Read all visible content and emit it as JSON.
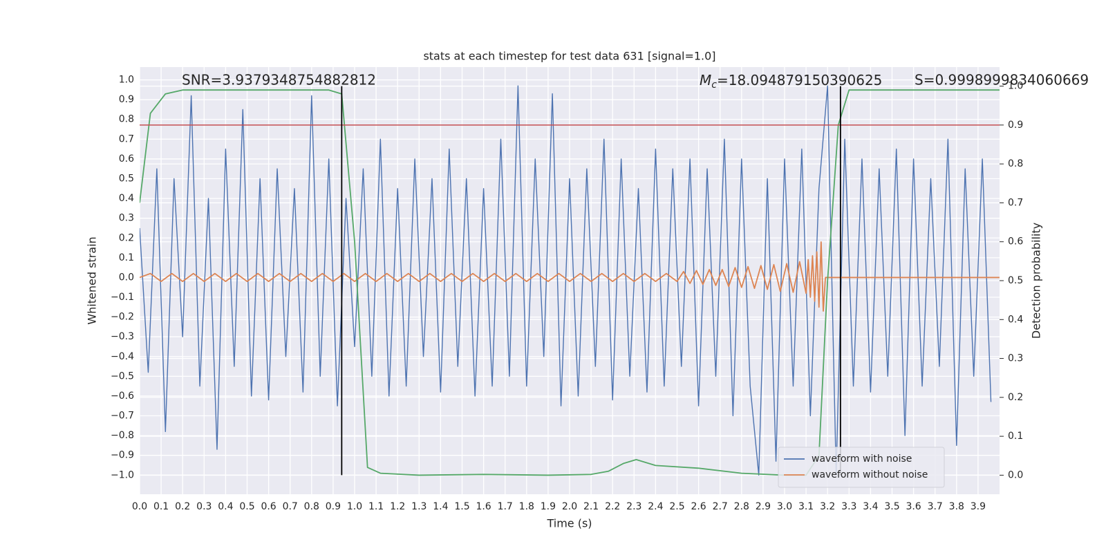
{
  "chart_data": {
    "type": "line",
    "title": "stats at each timestep for test data 631 [signal=1.0]",
    "xlabel": "Time (s)",
    "ylabel": "Whitened strain",
    "y2label": "Detection probability",
    "annotations": [
      {
        "text": "SNR=3.9379348754882812"
      },
      {
        "symbol": "M",
        "subscript": "c",
        "text": "=18.094879150390625"
      },
      {
        "text": "S=0.9998999834060669"
      }
    ],
    "xlim": [
      0,
      4.0
    ],
    "ylim": [
      -1.097,
      1.065
    ],
    "y2lim": [
      -0.049,
      1.049
    ],
    "grid": true,
    "legend_loc": "lower right",
    "xticks": [
      {
        "value": 0,
        "label": "0.0"
      },
      {
        "value": 0.1,
        "label": "0.1"
      },
      {
        "value": 0.2,
        "label": "0.2"
      },
      {
        "value": 0.3,
        "label": "0.3"
      },
      {
        "value": 0.4,
        "label": "0.4"
      },
      {
        "value": 0.5,
        "label": "0.5"
      },
      {
        "value": 0.6,
        "label": "0.6"
      },
      {
        "value": 0.7,
        "label": "0.7"
      },
      {
        "value": 0.8,
        "label": "0.8"
      },
      {
        "value": 0.9,
        "label": "0.9"
      },
      {
        "value": 1,
        "label": "1.0"
      },
      {
        "value": 1.1,
        "label": "1.1"
      },
      {
        "value": 1.2,
        "label": "1.2"
      },
      {
        "value": 1.3,
        "label": "1.3"
      },
      {
        "value": 1.4,
        "label": "1.4"
      },
      {
        "value": 1.5,
        "label": "1.5"
      },
      {
        "value": 1.6,
        "label": "1.6"
      },
      {
        "value": 1.7,
        "label": "1.7"
      },
      {
        "value": 1.8,
        "label": "1.8"
      },
      {
        "value": 1.9,
        "label": "1.9"
      },
      {
        "value": 2,
        "label": "2.0"
      },
      {
        "value": 2.1,
        "label": "2.1"
      },
      {
        "value": 2.2,
        "label": "2.2"
      },
      {
        "value": 2.3,
        "label": "2.3"
      },
      {
        "value": 2.4,
        "label": "2.4"
      },
      {
        "value": 2.5,
        "label": "2.5"
      },
      {
        "value": 2.6,
        "label": "2.6"
      },
      {
        "value": 2.7,
        "label": "2.7"
      },
      {
        "value": 2.8,
        "label": "2.8"
      },
      {
        "value": 2.9,
        "label": "2.9"
      },
      {
        "value": 3,
        "label": "3.0"
      },
      {
        "value": 3.1,
        "label": "3.1"
      },
      {
        "value": 3.2,
        "label": "3.2"
      },
      {
        "value": 3.3,
        "label": "3.3"
      },
      {
        "value": 3.4,
        "label": "3.4"
      },
      {
        "value": 3.5,
        "label": "3.5"
      },
      {
        "value": 3.6,
        "label": "3.6"
      },
      {
        "value": 3.7,
        "label": "3.7"
      },
      {
        "value": 3.8,
        "label": "3.8"
      },
      {
        "value": 3.9,
        "label": "3.9"
      }
    ],
    "yticks": [
      {
        "value": -1,
        "label": "−1.0"
      },
      {
        "value": -0.9,
        "label": "−0.9"
      },
      {
        "value": -0.8,
        "label": "−0.8"
      },
      {
        "value": -0.7,
        "label": "−0.7"
      },
      {
        "value": -0.6,
        "label": "−0.6"
      },
      {
        "value": -0.5,
        "label": "−0.5"
      },
      {
        "value": -0.4,
        "label": "−0.4"
      },
      {
        "value": -0.3,
        "label": "−0.3"
      },
      {
        "value": -0.2,
        "label": "−0.2"
      },
      {
        "value": -0.1,
        "label": "−0.1"
      },
      {
        "value": 0,
        "label": "0.0"
      },
      {
        "value": 0.1,
        "label": "0.1"
      },
      {
        "value": 0.2,
        "label": "0.2"
      },
      {
        "value": 0.3,
        "label": "0.3"
      },
      {
        "value": 0.4,
        "label": "0.4"
      },
      {
        "value": 0.5,
        "label": "0.5"
      },
      {
        "value": 0.6,
        "label": "0.6"
      },
      {
        "value": 0.7,
        "label": "0.7"
      },
      {
        "value": 0.8,
        "label": "0.8"
      },
      {
        "value": 0.9,
        "label": "0.9"
      },
      {
        "value": 1,
        "label": "1.0"
      }
    ],
    "y2ticks": [
      {
        "value": 0,
        "label": "0.0"
      },
      {
        "value": 0.1,
        "label": "0.1"
      },
      {
        "value": 0.2,
        "label": "0.2"
      },
      {
        "value": 0.3,
        "label": "0.3"
      },
      {
        "value": 0.4,
        "label": "0.4"
      },
      {
        "value": 0.5,
        "label": "0.5"
      },
      {
        "value": 0.6,
        "label": "0.6"
      },
      {
        "value": 0.7,
        "label": "0.7"
      },
      {
        "value": 0.8,
        "label": "0.8"
      },
      {
        "value": 0.9,
        "label": "0.9"
      },
      {
        "value": 1,
        "label": "1.0"
      }
    ],
    "threshold": 0.9,
    "threshold_color": "#c44e52",
    "vlines": [
      0.94,
      3.26
    ],
    "vline_color": "#000000",
    "series": [
      {
        "name": "waveform with noise",
        "color": "#4c72b0",
        "x": [
          0,
          0.04,
          0.08,
          0.12,
          0.16,
          0.2,
          0.24,
          0.28,
          0.32,
          0.36,
          0.4,
          0.44,
          0.48,
          0.52,
          0.56,
          0.6,
          0.64,
          0.68,
          0.72,
          0.76,
          0.8,
          0.84,
          0.88,
          0.92,
          0.96,
          1,
          1.04,
          1.08,
          1.12,
          1.16,
          1.2,
          1.24,
          1.28,
          1.32,
          1.36,
          1.4,
          1.44,
          1.48,
          1.52,
          1.56,
          1.6,
          1.64,
          1.68,
          1.72,
          1.76,
          1.8,
          1.84,
          1.88,
          1.92,
          1.96,
          2,
          2.04,
          2.08,
          2.12,
          2.16,
          2.2,
          2.24,
          2.28,
          2.32,
          2.36,
          2.4,
          2.44,
          2.48,
          2.52,
          2.56,
          2.6,
          2.64,
          2.68,
          2.72,
          2.76,
          2.8,
          2.84,
          2.88,
          2.92,
          2.96,
          3,
          3.04,
          3.08,
          3.12,
          3.16,
          3.2,
          3.24,
          3.28,
          3.32,
          3.36,
          3.4,
          3.44,
          3.48,
          3.52,
          3.56,
          3.6,
          3.64,
          3.68,
          3.72,
          3.76,
          3.8,
          3.84,
          3.88,
          3.92,
          3.96
        ],
        "values": [
          0.25,
          -0.48,
          0.55,
          -0.78,
          0.5,
          -0.3,
          0.92,
          -0.55,
          0.4,
          -0.87,
          0.65,
          -0.45,
          0.85,
          -0.6,
          0.5,
          -0.62,
          0.55,
          -0.4,
          0.45,
          -0.58,
          0.92,
          -0.5,
          0.6,
          -0.65,
          0.4,
          -0.35,
          0.55,
          -0.5,
          0.7,
          -0.6,
          0.45,
          -0.55,
          0.6,
          -0.4,
          0.5,
          -0.58,
          0.65,
          -0.45,
          0.5,
          -0.6,
          0.45,
          -0.55,
          0.7,
          -0.5,
          0.97,
          -0.55,
          0.6,
          -0.4,
          0.93,
          -0.65,
          0.5,
          -0.6,
          0.55,
          -0.45,
          0.7,
          -0.62,
          0.6,
          -0.5,
          0.45,
          -0.58,
          0.65,
          -0.55,
          0.55,
          -0.45,
          0.6,
          -0.65,
          0.55,
          -0.5,
          0.7,
          -0.7,
          0.6,
          -0.55,
          -1.0,
          0.5,
          -0.93,
          0.6,
          -0.55,
          0.65,
          -0.7,
          0.45,
          0.97,
          -1.0,
          0.7,
          -0.55,
          0.6,
          -0.58,
          0.55,
          -0.5,
          0.65,
          -0.8,
          0.6,
          -0.55,
          0.5,
          -0.45,
          0.7,
          -0.85,
          0.55,
          -0.5,
          0.6,
          -0.63
        ]
      },
      {
        "name": "waveform without noise",
        "color": "#dd8452",
        "x": [
          0,
          0.05,
          0.1,
          0.15,
          0.2,
          0.25,
          0.3,
          0.35,
          0.4,
          0.45,
          0.5,
          0.55,
          0.6,
          0.65,
          0.7,
          0.75,
          0.8,
          0.85,
          0.9,
          0.95,
          1,
          1.05,
          1.1,
          1.15,
          1.2,
          1.25,
          1.3,
          1.35,
          1.4,
          1.45,
          1.5,
          1.55,
          1.6,
          1.65,
          1.7,
          1.75,
          1.8,
          1.85,
          1.9,
          1.95,
          2,
          2.05,
          2.1,
          2.15,
          2.2,
          2.25,
          2.3,
          2.35,
          2.4,
          2.45,
          2.5,
          2.53,
          2.56,
          2.59,
          2.62,
          2.65,
          2.68,
          2.71,
          2.74,
          2.77,
          2.8,
          2.83,
          2.86,
          2.89,
          2.92,
          2.95,
          2.98,
          3.01,
          3.04,
          3.07,
          3.1,
          3.11,
          3.12,
          3.13,
          3.14,
          3.15,
          3.16,
          3.17,
          3.18,
          3.19,
          4.0
        ],
        "values": [
          0,
          0.02,
          -0.02,
          0.02,
          -0.02,
          0.02,
          -0.02,
          0.02,
          -0.02,
          0.02,
          -0.02,
          0.02,
          -0.02,
          0.02,
          -0.02,
          0.02,
          -0.02,
          0.02,
          -0.02,
          0.02,
          -0.02,
          0.02,
          -0.02,
          0.02,
          -0.02,
          0.02,
          -0.02,
          0.02,
          -0.02,
          0.02,
          -0.02,
          0.02,
          -0.02,
          0.02,
          -0.02,
          0.02,
          -0.02,
          0.02,
          -0.02,
          0.02,
          -0.02,
          0.02,
          -0.02,
          0.02,
          -0.02,
          0.02,
          -0.02,
          0.02,
          -0.02,
          0.02,
          -0.02,
          0.03,
          -0.03,
          0.035,
          -0.035,
          0.04,
          -0.04,
          0.04,
          -0.045,
          0.05,
          -0.05,
          0.055,
          -0.055,
          0.06,
          -0.06,
          0.065,
          -0.07,
          0.07,
          -0.075,
          0.08,
          -0.08,
          0.09,
          -0.1,
          0.11,
          -0.12,
          0.13,
          -0.15,
          0.18,
          -0.17,
          0,
          0
        ]
      },
      {
        "color": "#55a868",
        "axis": "y2",
        "x": [
          0,
          0.05,
          0.12,
          0.2,
          0.3,
          0.5,
          0.7,
          0.88,
          0.94,
          1.0,
          1.06,
          1.12,
          1.3,
          1.6,
          1.9,
          2.1,
          2.18,
          2.25,
          2.31,
          2.4,
          2.6,
          2.8,
          3.0,
          3.1,
          3.16,
          3.2,
          3.25,
          3.3,
          3.4,
          4.0
        ],
        "values": [
          0.7,
          0.93,
          0.98,
          0.99,
          0.99,
          0.99,
          0.99,
          0.99,
          0.98,
          0.6,
          0.02,
          0.005,
          0,
          0.002,
          0,
          0.002,
          0.01,
          0.03,
          0.04,
          0.025,
          0.018,
          0.005,
          0,
          0,
          0.05,
          0.5,
          0.9,
          0.99,
          0.99,
          0.99
        ]
      }
    ]
  }
}
